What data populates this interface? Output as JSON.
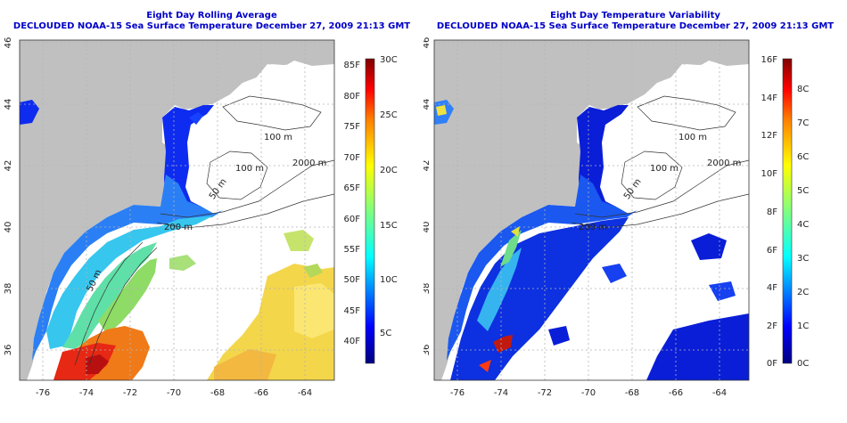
{
  "maps": [
    {
      "title": "Eight Day Rolling Average",
      "subtitle": "DECLOUDED NOAA-15 Sea Surface Temperature December 27, 2009 21:13 GMT",
      "colorbar_left_ticks": [
        "85F",
        "80F",
        "75F",
        "70F",
        "65F",
        "60F",
        "55F",
        "50F",
        "45F",
        "40F"
      ],
      "colorbar_right_ticks": [
        "30C",
        "25C",
        "20C",
        "15C",
        "10C",
        "5C"
      ],
      "contour_labels": [
        "100 m",
        "2000 m",
        "100 m",
        "50 m",
        "200 m",
        "50 m"
      ]
    },
    {
      "title": "Eight Day Temperature Variability",
      "subtitle": "DECLOUDED NOAA-15 Sea Surface Temperature December 27, 2009 21:13 GMT",
      "colorbar_left_ticks": [
        "16F",
        "14F",
        "12F",
        "10F",
        "8F",
        "6F",
        "4F",
        "2F",
        "0F"
      ],
      "colorbar_right_ticks": [
        "8C",
        "7C",
        "6C",
        "5C",
        "4C",
        "3C",
        "2C",
        "1C",
        "0C"
      ],
      "contour_labels": [
        "100 m",
        "2000 m",
        "100 m",
        "50 m",
        "200 m"
      ]
    }
  ],
  "x_axis_ticks": [
    "-76",
    "-74",
    "-72",
    "-70",
    "-68",
    "-66",
    "-64"
  ],
  "y_axis_ticks": [
    "46",
    "44",
    "42",
    "40",
    "38",
    "36"
  ],
  "colors": {
    "title": "#0000c8",
    "land": "#c0c0c0",
    "grid": "#b4b4b4",
    "colormap": [
      "#00007f",
      "#0000ff",
      "#007fff",
      "#00ffff",
      "#7fff7f",
      "#ffff00",
      "#ff7f00",
      "#ff0000",
      "#7f0000"
    ]
  }
}
